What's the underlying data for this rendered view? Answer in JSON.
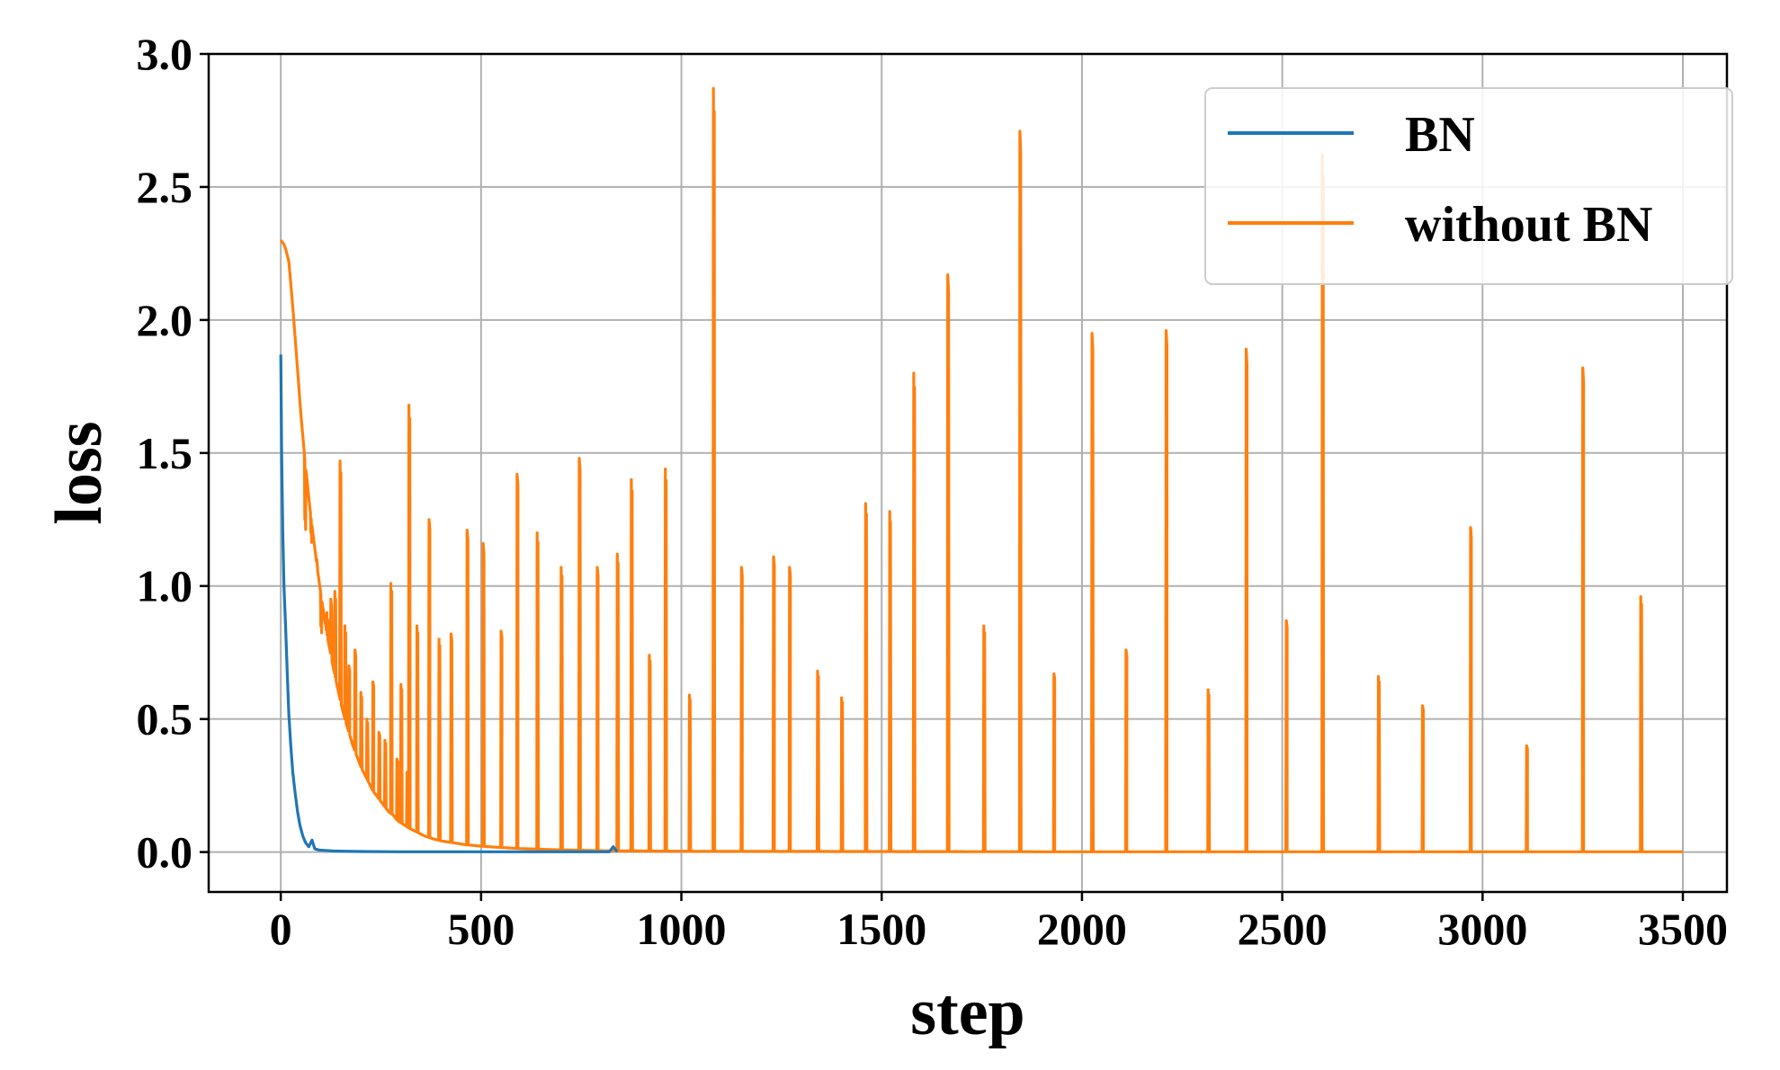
{
  "chart_data": {
    "type": "line",
    "title": "",
    "xlabel": "step",
    "ylabel": "loss",
    "xlim": [
      -180,
      3610
    ],
    "ylim": [
      -0.15,
      3.0
    ],
    "xticks": [
      0,
      500,
      1000,
      1500,
      2000,
      2500,
      3000,
      3500
    ],
    "yticks": [
      0.0,
      0.5,
      1.0,
      1.5,
      2.0,
      2.5,
      3.0
    ],
    "xtick_labels": [
      "0",
      "500",
      "1000",
      "1500",
      "2000",
      "2500",
      "3000",
      "3500"
    ],
    "ytick_labels": [
      "0.0",
      "0.5",
      "1.0",
      "1.5",
      "2.0",
      "2.5",
      "3.0"
    ],
    "grid": true,
    "legend_position": "top-right",
    "series": [
      {
        "name": "BN",
        "color": "#1f77b4",
        "points": [
          [
            0,
            1.87
          ],
          [
            2,
            1.5
          ],
          [
            5,
            1.2
          ],
          [
            8,
            1.0
          ],
          [
            12,
            0.85
          ],
          [
            16,
            0.68
          ],
          [
            20,
            0.52
          ],
          [
            25,
            0.4
          ],
          [
            30,
            0.3
          ],
          [
            36,
            0.22
          ],
          [
            42,
            0.15
          ],
          [
            48,
            0.1
          ],
          [
            55,
            0.06
          ],
          [
            62,
            0.035
          ],
          [
            70,
            0.02
          ],
          [
            78,
            0.045
          ],
          [
            85,
            0.012
          ],
          [
            95,
            0.008
          ],
          [
            110,
            0.006
          ],
          [
            130,
            0.004
          ],
          [
            160,
            0.003
          ],
          [
            200,
            0.002
          ],
          [
            300,
            0.001
          ],
          [
            500,
            0.001
          ],
          [
            700,
            0.001
          ],
          [
            820,
            0.001
          ],
          [
            830,
            0.02
          ],
          [
            840,
            0.001
          ]
        ]
      },
      {
        "name": "without BN",
        "color": "#ff7f0e",
        "baseline": [
          [
            0,
            2.3
          ],
          [
            10,
            2.28
          ],
          [
            20,
            2.22
          ],
          [
            30,
            2.05
          ],
          [
            40,
            1.85
          ],
          [
            50,
            1.65
          ],
          [
            60,
            1.48
          ],
          [
            70,
            1.33
          ],
          [
            80,
            1.2
          ],
          [
            90,
            1.08
          ],
          [
            100,
            0.97
          ],
          [
            110,
            0.87
          ],
          [
            120,
            0.78
          ],
          [
            130,
            0.7
          ],
          [
            140,
            0.63
          ],
          [
            150,
            0.56
          ],
          [
            160,
            0.5
          ],
          [
            170,
            0.45
          ],
          [
            180,
            0.4
          ],
          [
            190,
            0.36
          ],
          [
            200,
            0.32
          ],
          [
            210,
            0.29
          ],
          [
            220,
            0.26
          ],
          [
            230,
            0.23
          ],
          [
            240,
            0.21
          ],
          [
            250,
            0.19
          ],
          [
            260,
            0.17
          ],
          [
            270,
            0.15
          ],
          [
            280,
            0.14
          ],
          [
            290,
            0.12
          ],
          [
            300,
            0.11
          ],
          [
            320,
            0.09
          ],
          [
            340,
            0.075
          ],
          [
            360,
            0.06
          ],
          [
            380,
            0.05
          ],
          [
            400,
            0.042
          ],
          [
            430,
            0.035
          ],
          [
            460,
            0.028
          ],
          [
            500,
            0.022
          ],
          [
            550,
            0.017
          ],
          [
            600,
            0.013
          ],
          [
            700,
            0.008
          ],
          [
            800,
            0.005
          ],
          [
            1000,
            0.003
          ],
          [
            1500,
            0.002
          ],
          [
            2000,
            0.001
          ],
          [
            3500,
            0.001
          ]
        ],
        "spikes": [
          [
            60,
            1.25
          ],
          [
            75,
            1.2
          ],
          [
            90,
            1.1
          ],
          [
            100,
            0.85
          ],
          [
            115,
            0.9
          ],
          [
            125,
            0.95
          ],
          [
            135,
            0.98
          ],
          [
            148,
            1.47
          ],
          [
            160,
            0.85
          ],
          [
            170,
            0.7
          ],
          [
            185,
            0.76
          ],
          [
            200,
            0.6
          ],
          [
            215,
            0.5
          ],
          [
            230,
            0.64
          ],
          [
            245,
            0.45
          ],
          [
            260,
            0.42
          ],
          [
            275,
            1.01
          ],
          [
            290,
            0.35
          ],
          [
            300,
            0.63
          ],
          [
            315,
            0.3
          ],
          [
            320,
            1.68
          ],
          [
            340,
            0.85
          ],
          [
            370,
            1.25
          ],
          [
            395,
            0.8
          ],
          [
            425,
            0.82
          ],
          [
            465,
            1.21
          ],
          [
            505,
            1.16
          ],
          [
            550,
            0.83
          ],
          [
            590,
            1.42
          ],
          [
            640,
            1.2
          ],
          [
            700,
            1.07
          ],
          [
            745,
            1.48
          ],
          [
            790,
            1.07
          ],
          [
            840,
            1.12
          ],
          [
            875,
            1.4
          ],
          [
            920,
            0.74
          ],
          [
            960,
            1.44
          ],
          [
            1020,
            0.59
          ],
          [
            1080,
            2.87
          ],
          [
            1150,
            1.07
          ],
          [
            1230,
            1.11
          ],
          [
            1270,
            1.07
          ],
          [
            1340,
            0.68
          ],
          [
            1400,
            0.58
          ],
          [
            1460,
            1.31
          ],
          [
            1520,
            1.28
          ],
          [
            1580,
            1.8
          ],
          [
            1665,
            2.17
          ],
          [
            1755,
            0.85
          ],
          [
            1845,
            2.71
          ],
          [
            1930,
            0.67
          ],
          [
            2025,
            1.95
          ],
          [
            2110,
            0.76
          ],
          [
            2210,
            1.96
          ],
          [
            2315,
            0.61
          ],
          [
            2410,
            1.89
          ],
          [
            2510,
            0.87
          ],
          [
            2600,
            2.62
          ],
          [
            2740,
            0.66
          ],
          [
            2850,
            0.55
          ],
          [
            2970,
            1.22
          ],
          [
            3110,
            0.4
          ],
          [
            3250,
            1.82
          ],
          [
            3395,
            0.96
          ]
        ]
      }
    ]
  }
}
